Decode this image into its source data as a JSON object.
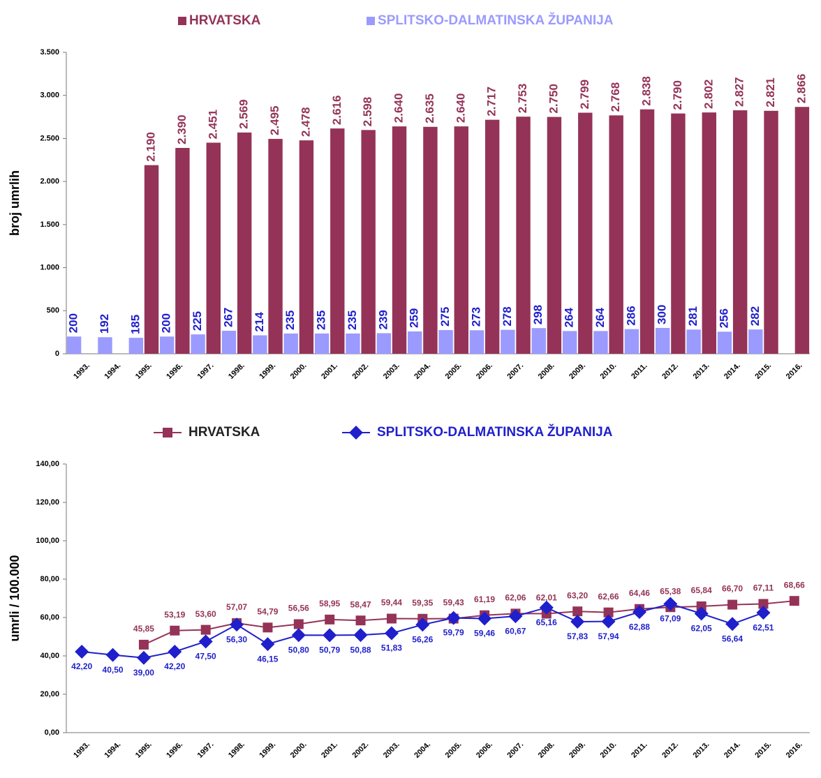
{
  "chart_data": [
    {
      "type": "bar",
      "y_label": "broj umrlih",
      "categories": [
        "1993.",
        "1994.",
        "1995.",
        "1996.",
        "1997.",
        "1998.",
        "1999.",
        "2000.",
        "2001.",
        "2002.",
        "2003.",
        "2004.",
        "2005.",
        "2006.",
        "2007.",
        "2008.",
        "2009.",
        "2010.",
        "2011.",
        "2012.",
        "2013.",
        "2014.",
        "2015.",
        "2016."
      ],
      "series": [
        {
          "name": "HRVATSKA",
          "color": "#943357",
          "values": [
            null,
            null,
            2190,
            2390,
            2451,
            2569,
            2495,
            2478,
            2616,
            2598,
            2640,
            2635,
            2640,
            2717,
            2753,
            2750,
            2799,
            2768,
            2838,
            2790,
            2802,
            2827,
            2821,
            2866
          ],
          "value_labels": [
            null,
            null,
            "2.190",
            "2.390",
            "2.451",
            "2.569",
            "2.495",
            "2.478",
            "2.616",
            "2.598",
            "2.640",
            "2.635",
            "2.640",
            "2.717",
            "2.753",
            "2.750",
            "2.799",
            "2.768",
            "2.838",
            "2.790",
            "2.802",
            "2.827",
            "2.821",
            "2.866"
          ]
        },
        {
          "name": "SPLITSKO-DALMATINSKA ŽUPANIJA",
          "color": "#9a9aff",
          "values": [
            200,
            192,
            185,
            200,
            225,
            267,
            214,
            235,
            235,
            235,
            239,
            259,
            275,
            273,
            278,
            298,
            264,
            264,
            286,
            300,
            281,
            256,
            282,
            null
          ]
        }
      ],
      "ylim": [
        0,
        3500
      ],
      "yticks": [
        0,
        500,
        {
          "value": 1000,
          "label": "1.000"
        },
        {
          "value": 1500,
          "label": "1.500"
        },
        {
          "value": 2000,
          "label": "2.000"
        },
        {
          "value": 2500,
          "label": "2.500"
        },
        {
          "value": 3000,
          "label": "3.000"
        },
        {
          "value": 3500,
          "label": "3.500"
        }
      ],
      "legend": "top"
    },
    {
      "type": "line",
      "y_label": "umrli / 100.000",
      "categories": [
        "1993.",
        "1994.",
        "1995.",
        "1996.",
        "1997.",
        "1998.",
        "1999.",
        "2000.",
        "2001.",
        "2002.",
        "2003.",
        "2004.",
        "2005.",
        "2006.",
        "2007.",
        "2008.",
        "2009.",
        "2010.",
        "2011.",
        "2012.",
        "2013.",
        "2014.",
        "2015.",
        "2016."
      ],
      "series": [
        {
          "name": "HRVATSKA",
          "color": "#943357",
          "marker": "square",
          "values": [
            null,
            null,
            45.85,
            53.19,
            53.6,
            57.07,
            54.79,
            56.56,
            58.95,
            58.47,
            59.44,
            59.35,
            59.43,
            61.19,
            62.06,
            62.01,
            63.2,
            62.66,
            64.46,
            65.38,
            65.84,
            66.7,
            67.11,
            68.66
          ],
          "value_labels": [
            null,
            null,
            "45,85",
            "53,19",
            "53,60",
            "57,07",
            "54,79",
            "56,56",
            "58,95",
            "58,47",
            "59,44",
            "59,35",
            "59,43",
            "61,19",
            "62,06",
            "62,01",
            "63,20",
            "62,66",
            "64,46",
            "65,38",
            "65,84",
            "66,70",
            "67,11",
            "68,66"
          ]
        },
        {
          "name": "SPLITSKO-DALMATINSKA ŽUPANIJA",
          "color": "#1f1fcc",
          "marker": "diamond",
          "values": [
            42.2,
            40.5,
            39.0,
            42.2,
            47.5,
            56.3,
            46.15,
            50.8,
            50.79,
            50.88,
            51.83,
            56.26,
            59.79,
            59.46,
            60.67,
            65.16,
            57.83,
            57.94,
            62.88,
            67.09,
            62.05,
            56.64,
            62.51,
            null
          ],
          "value_labels": [
            "42,20",
            "40,50",
            "39,00",
            "42,20",
            "47,50",
            "56,30",
            "46,15",
            "50,80",
            "50,79",
            "50,88",
            "51,83",
            "56,26",
            "59,79",
            "59,46",
            "60,67",
            "65,16",
            "57,83",
            "57,94",
            "62,88",
            "67,09",
            "62,05",
            "56,64",
            "62,51",
            null
          ]
        }
      ],
      "ylim": [
        0,
        140
      ],
      "yticks": [
        {
          "value": 0,
          "label": "0,00"
        },
        {
          "value": 20,
          "label": "20,00"
        },
        {
          "value": 40,
          "label": "40,00"
        },
        {
          "value": 60,
          "label": "60,00"
        },
        {
          "value": 80,
          "label": "80,00"
        },
        {
          "value": 100,
          "label": "100,00"
        },
        {
          "value": 120,
          "label": "120,00"
        },
        {
          "value": 140,
          "label": "140,00"
        }
      ],
      "legend": "top"
    }
  ]
}
